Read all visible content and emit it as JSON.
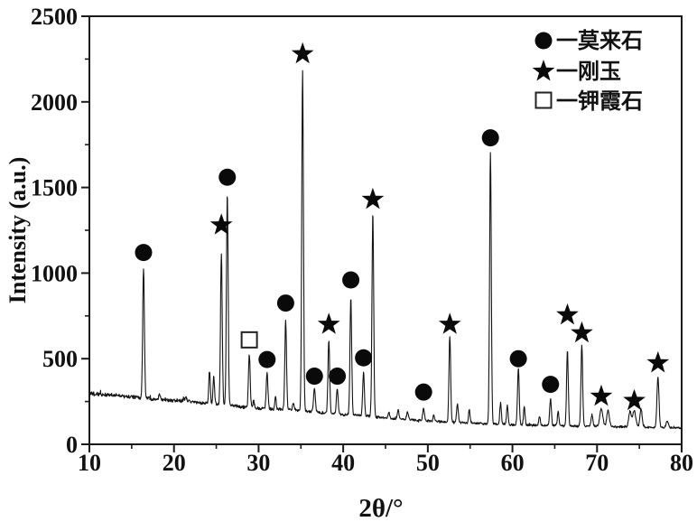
{
  "figure": {
    "xlabel": "2θ/°",
    "ylabel": "Intensity (a.u.)"
  },
  "legend": {
    "items": [
      {
        "symbol": "filled-circle",
        "phase": "mullite",
        "label": "一莫来石"
      },
      {
        "symbol": "filled-star",
        "phase": "corundum",
        "label": "一刚玉"
      },
      {
        "symbol": "open-square",
        "phase": "kalsilite",
        "label": "一钾霞石"
      }
    ]
  },
  "colors": {
    "trace": "#141414",
    "marker": "#0a0a0a",
    "background": "#ffffff",
    "frame": "#1a1a1a"
  },
  "chart_data": {
    "type": "line",
    "series_name": "XRD pattern",
    "xlabel": "2θ/°",
    "ylabel": "Intensity (a.u.)",
    "xlim": [
      10,
      80
    ],
    "ylim": [
      0,
      2500
    ],
    "x_major_ticks": [
      10,
      20,
      30,
      40,
      50,
      60,
      70,
      80
    ],
    "x_minor_step": 5,
    "y_major_ticks": [
      0,
      500,
      1000,
      1500,
      2000,
      2500
    ],
    "y_minor_step": 250,
    "grid": false,
    "legend_position": "top-right-inside",
    "baseline_points": [
      [
        10,
        295
      ],
      [
        14,
        282
      ],
      [
        18,
        265
      ],
      [
        22,
        248
      ],
      [
        26,
        228
      ],
      [
        30,
        210
      ],
      [
        34,
        200
      ],
      [
        38,
        182
      ],
      [
        42,
        168
      ],
      [
        46,
        150
      ],
      [
        50,
        135
      ],
      [
        55,
        125
      ],
      [
        60,
        114
      ],
      [
        65,
        109
      ],
      [
        70,
        104
      ],
      [
        75,
        100
      ],
      [
        80,
        95
      ]
    ],
    "noise_amplitude_left_to_right": [
      14,
      7
    ],
    "labeled_peaks": [
      {
        "two_theta": 16.4,
        "intensity": 1030,
        "phase": "mullite",
        "marker_intensity": 1120
      },
      {
        "two_theta": 25.6,
        "intensity": 1110,
        "phase": "corundum",
        "marker_intensity": 1280
      },
      {
        "two_theta": 26.3,
        "intensity": 1470,
        "phase": "mullite",
        "marker_intensity": 1560
      },
      {
        "two_theta": 28.9,
        "intensity": 530,
        "phase": "kalsilite",
        "marker_intensity": 610
      },
      {
        "two_theta": 31.0,
        "intensity": 420,
        "phase": "mullite",
        "marker_intensity": 495
      },
      {
        "two_theta": 33.2,
        "intensity": 722,
        "phase": "mullite",
        "marker_intensity": 825
      },
      {
        "two_theta": 35.2,
        "intensity": 2185,
        "phase": "corundum",
        "marker_intensity": 2280
      },
      {
        "two_theta": 36.6,
        "intensity": 330,
        "phase": "mullite",
        "marker_intensity": 398
      },
      {
        "two_theta": 38.3,
        "intensity": 605,
        "phase": "corundum",
        "marker_intensity": 700
      },
      {
        "two_theta": 39.3,
        "intensity": 330,
        "phase": "mullite",
        "marker_intensity": 398
      },
      {
        "two_theta": 40.9,
        "intensity": 855,
        "phase": "mullite",
        "marker_intensity": 960
      },
      {
        "two_theta": 42.4,
        "intensity": 420,
        "phase": "mullite",
        "marker_intensity": 505
      },
      {
        "two_theta": 43.5,
        "intensity": 1350,
        "phase": "corundum",
        "marker_intensity": 1430
      },
      {
        "two_theta": 49.5,
        "intensity": 215,
        "phase": "mullite",
        "marker_intensity": 305
      },
      {
        "two_theta": 52.6,
        "intensity": 628,
        "phase": "corundum",
        "marker_intensity": 700
      },
      {
        "two_theta": 57.4,
        "intensity": 1700,
        "phase": "mullite",
        "marker_intensity": 1790
      },
      {
        "two_theta": 60.7,
        "intensity": 445,
        "phase": "mullite",
        "marker_intensity": 500
      },
      {
        "two_theta": 64.5,
        "intensity": 265,
        "phase": "mullite",
        "marker_intensity": 350
      },
      {
        "two_theta": 66.5,
        "intensity": 550,
        "phase": "corundum",
        "marker_intensity": 755
      },
      {
        "two_theta": 68.2,
        "intensity": 577,
        "phase": "corundum",
        "marker_intensity": 650
      },
      {
        "two_theta": 70.5,
        "intensity": 206,
        "phase": "corundum",
        "marker_intensity": 280,
        "sigma": 0.18
      },
      {
        "two_theta": 74.4,
        "intensity": 196,
        "phase": "corundum",
        "marker_intensity": 255,
        "sigma": 0.18
      },
      {
        "two_theta": 77.2,
        "intensity": 390,
        "phase": "corundum",
        "marker_intensity": 475,
        "sigma": 0.12
      }
    ],
    "minor_peaks": [
      [
        18.3,
        300,
        0.08
      ],
      [
        21.4,
        285,
        0.08
      ],
      [
        24.2,
        430,
        0.09
      ],
      [
        24.7,
        400,
        0.09
      ],
      [
        29.4,
        255,
        0.09
      ],
      [
        32.0,
        272,
        0.09
      ],
      [
        34.1,
        240,
        0.09
      ],
      [
        45.4,
        185,
        0.1
      ],
      [
        46.5,
        198,
        0.1
      ],
      [
        47.6,
        192,
        0.1
      ],
      [
        50.7,
        170,
        0.09
      ],
      [
        53.5,
        232,
        0.1
      ],
      [
        54.9,
        200,
        0.09
      ],
      [
        58.6,
        242,
        0.09
      ],
      [
        59.4,
        225,
        0.09
      ],
      [
        61.4,
        216,
        0.09
      ],
      [
        63.2,
        165,
        0.09
      ],
      [
        65.4,
        192,
        0.09
      ],
      [
        69.4,
        175,
        0.1
      ],
      [
        71.3,
        196,
        0.15
      ],
      [
        73.9,
        192,
        0.15
      ],
      [
        75.2,
        206,
        0.13
      ],
      [
        78.3,
        136,
        0.14
      ]
    ],
    "phases": {
      "mullite": {
        "label": "一莫来石",
        "symbol": "filled-circle"
      },
      "corundum": {
        "label": "一刚玉",
        "symbol": "filled-star"
      },
      "kalsilite": {
        "label": "一钾霞石",
        "symbol": "open-square"
      }
    }
  }
}
